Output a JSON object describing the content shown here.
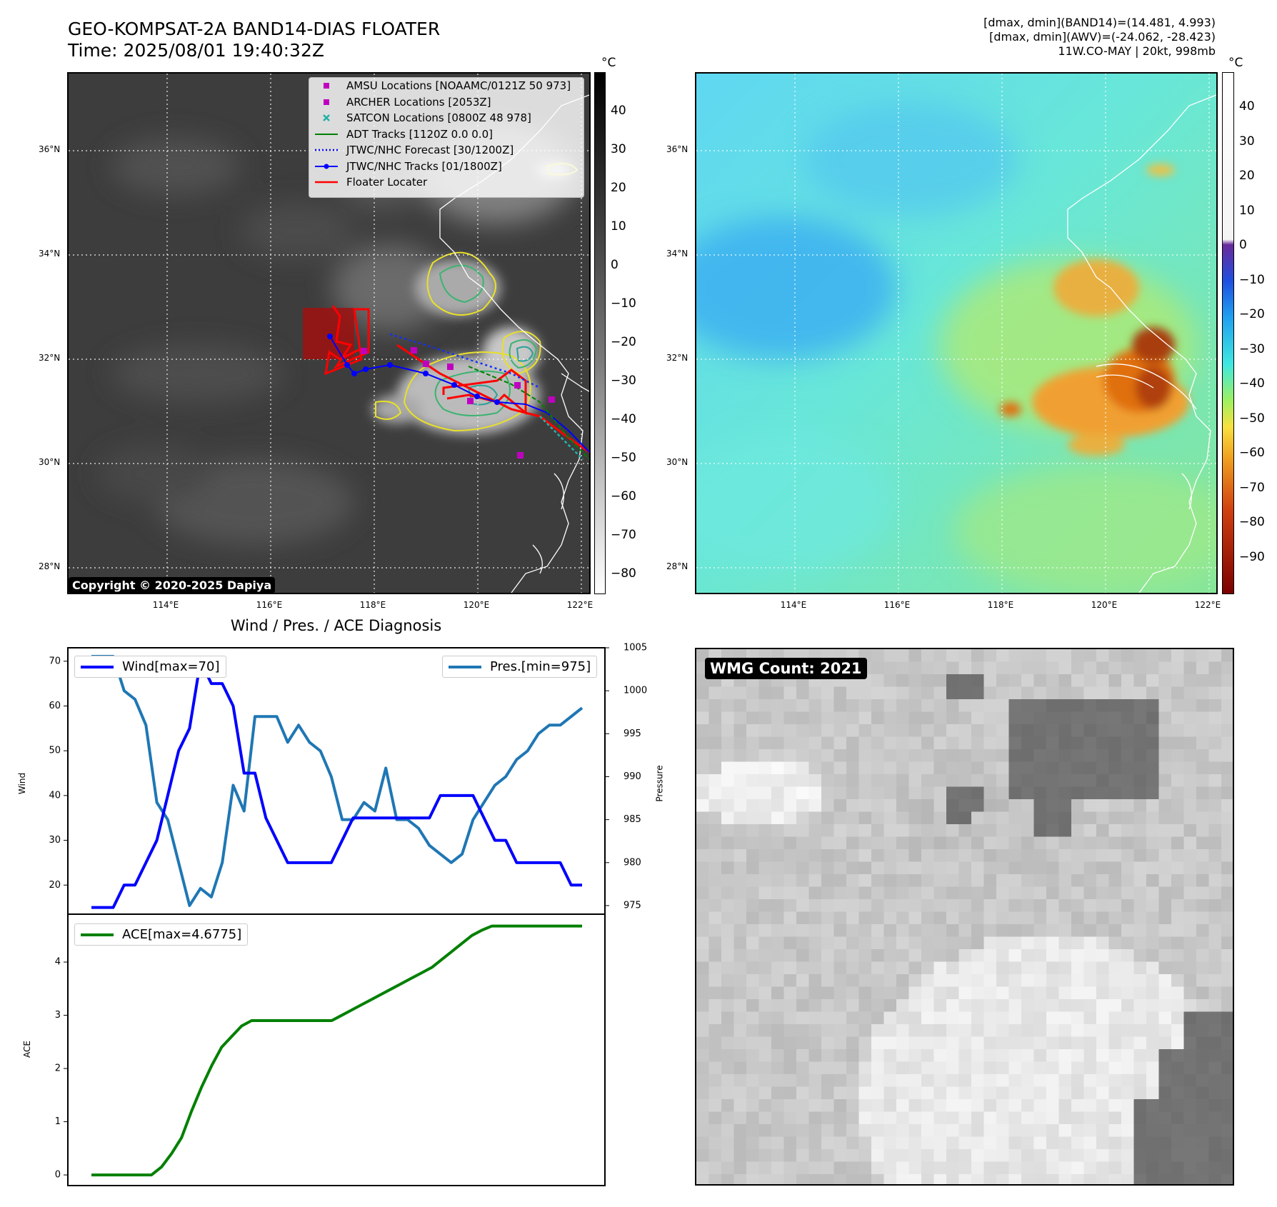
{
  "header": {
    "title_line1": "GEO-KOMPSAT-2A BAND14-DIAS FLOATER",
    "title_line2": "Time: 2025/08/01 19:40:32Z",
    "info_line1": "[dmax, dmin](BAND14)=(14.481, 4.993)",
    "info_line2": "[dmax, dmin](AWV)=(-24.062, -28.423)",
    "info_line3": "11W.CO-MAY | 20kt, 998mb"
  },
  "maps": {
    "lon_ticks": [
      "114°E",
      "116°E",
      "118°E",
      "120°E",
      "122°E"
    ],
    "lat_ticks": [
      "36°N",
      "34°N",
      "32°N",
      "30°N",
      "28°N"
    ],
    "copyright": "Copyright © 2020-2025 Dapiya",
    "colorbar_unit": "°C",
    "ir_colorbar_ticks": [
      "40",
      "30",
      "20",
      "10",
      "0",
      "−10",
      "−20",
      "−30",
      "−40",
      "−50",
      "−60",
      "−70",
      "−80"
    ],
    "wv_colorbar_ticks": [
      "40",
      "30",
      "20",
      "10",
      "0",
      "−10",
      "−20",
      "−30",
      "−40",
      "−50",
      "−60",
      "−70",
      "−80",
      "−90"
    ],
    "legend": [
      {
        "label": "AMSU Locations [NOAAMC/0121Z 50 973]",
        "icon": "magenta-square-marker",
        "color": "#c000c0"
      },
      {
        "label": "ARCHER Locations [2053Z]",
        "icon": "magenta-square-marker",
        "color": "#c000c0"
      },
      {
        "label": "SATCON Locations [0800Z 48 978]",
        "icon": "teal-x-marker",
        "color": "#20b2aa"
      },
      {
        "label": "ADT Tracks [1120Z 0.0 0.0]",
        "icon": "green-line",
        "color": "#008000"
      },
      {
        "label": "JTWC/NHC Forecast [30/1200Z]",
        "icon": "blue-dotted-line",
        "color": "#0000ff"
      },
      {
        "label": "JTWC/NHC Tracks [01/1800Z]",
        "icon": "blue-line-dot",
        "color": "#0000ff"
      },
      {
        "label": "Floater Locater",
        "icon": "red-line",
        "color": "#ff0000"
      }
    ]
  },
  "diagnosis": {
    "title": "Wind / Pres. / ACE Diagnosis",
    "wind_legend": "Wind[max=70]",
    "pres_legend": "Pres.[min=975]",
    "ace_legend": "ACE[max=4.6775]",
    "wind_ylabel": "Wind",
    "pres_ylabel": "Pressure",
    "ace_ylabel": "ACE",
    "colors": {
      "wind": "#0000ff",
      "pres": "#1f77b4",
      "ace": "#008000"
    }
  },
  "wmg": {
    "badge": "WMG Count: 2021"
  },
  "chart_data": [
    {
      "type": "line",
      "name": "wind-pressure",
      "series": [
        {
          "name": "Wind[max=70]",
          "axis": "left",
          "values": [
            15,
            15,
            15,
            20,
            20,
            25,
            30,
            40,
            50,
            55,
            70,
            65,
            65,
            60,
            45,
            45,
            35,
            30,
            25,
            25,
            25,
            25,
            25,
            30,
            35,
            35,
            35,
            35,
            35,
            35,
            35,
            35,
            40,
            40,
            40,
            40,
            35,
            30,
            30,
            25,
            25,
            25,
            25,
            25,
            20,
            20
          ]
        },
        {
          "name": "Pres.[min=975]",
          "axis": "right",
          "values": [
            1004,
            1004,
            1004,
            1000,
            999,
            996,
            987,
            985,
            980,
            975,
            977,
            976,
            980,
            989,
            986,
            997,
            997,
            997,
            994,
            996,
            994,
            993,
            990,
            985,
            985,
            987,
            986,
            991,
            985,
            985,
            984,
            982,
            981,
            980,
            981,
            985,
            987,
            989,
            990,
            992,
            993,
            995,
            996,
            996,
            997,
            998
          ]
        }
      ],
      "yleft": {
        "ticks": [
          20,
          30,
          40,
          50,
          60,
          70
        ],
        "ylim": [
          13.5,
          73
        ]
      },
      "yright": {
        "ticks": [
          975,
          980,
          985,
          990,
          995,
          1000,
          1005
        ],
        "ylim": [
          974,
          1005
        ]
      }
    },
    {
      "type": "line",
      "name": "ace",
      "series": [
        {
          "name": "ACE[max=4.6775]",
          "values": [
            0,
            0,
            0,
            0,
            0,
            0,
            0,
            0.15,
            0.4,
            0.7,
            1.2,
            1.65,
            2.05,
            2.4,
            2.6,
            2.8,
            2.9,
            2.9,
            2.9,
            2.9,
            2.9,
            2.9,
            2.9,
            2.9,
            2.9,
            3.0,
            3.1,
            3.2,
            3.3,
            3.4,
            3.5,
            3.6,
            3.7,
            3.8,
            3.9,
            4.05,
            4.2,
            4.35,
            4.5,
            4.6,
            4.6775,
            4.6775,
            4.6775,
            4.6775,
            4.6775,
            4.6775,
            4.6775,
            4.6775,
            4.6775,
            4.6775
          ]
        }
      ],
      "yleft": {
        "ticks": [
          0,
          1,
          2,
          3,
          4
        ],
        "ylim": [
          -0.2,
          4.9
        ]
      }
    }
  ]
}
